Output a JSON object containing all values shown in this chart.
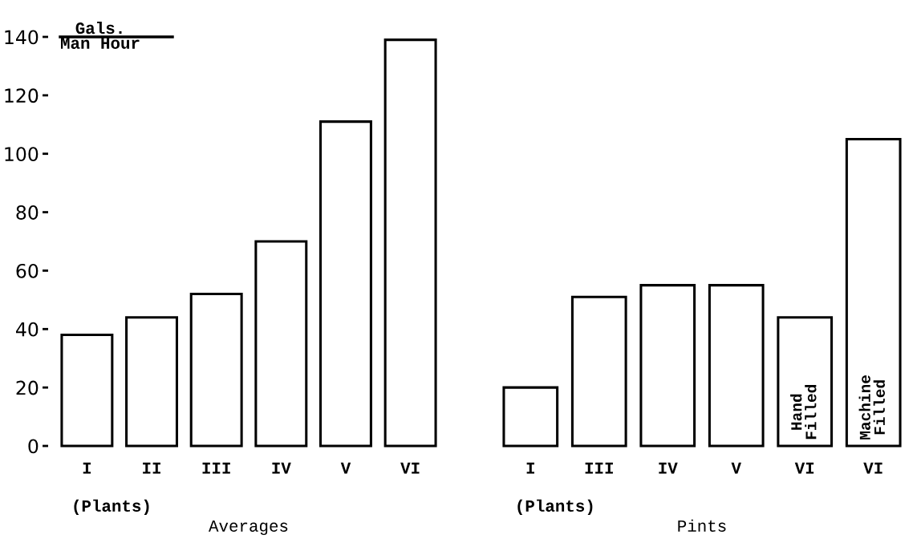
{
  "chart_data": [
    {
      "type": "bar",
      "xlabel": "Averages",
      "ylabel": "Gals.\nMan Hour",
      "categories": [
        "I",
        "II",
        "III",
        "IV",
        "V",
        "VI"
      ],
      "values": [
        38,
        44,
        52,
        70,
        111,
        139
      ],
      "color": "#ffffff",
      "ylim": [
        0,
        140
      ],
      "yticks": [
        0,
        20,
        40,
        60,
        80,
        100,
        120,
        140
      ],
      "grid": false,
      "annotations": [
        "(Plants)"
      ]
    },
    {
      "type": "bar",
      "xlabel": "Pints",
      "categories": [
        "I",
        "III",
        "IV",
        "V",
        "VI",
        "VI"
      ],
      "values": [
        20,
        51,
        55,
        55,
        44,
        105
      ],
      "color": "#ffffff",
      "ylim": [
        0,
        140
      ],
      "tick_labels": "x",
      "grid": false,
      "annotations": [
        "(Plants)",
        "Hand\nFilled",
        "Machine\nFilled"
      ]
    }
  ]
}
